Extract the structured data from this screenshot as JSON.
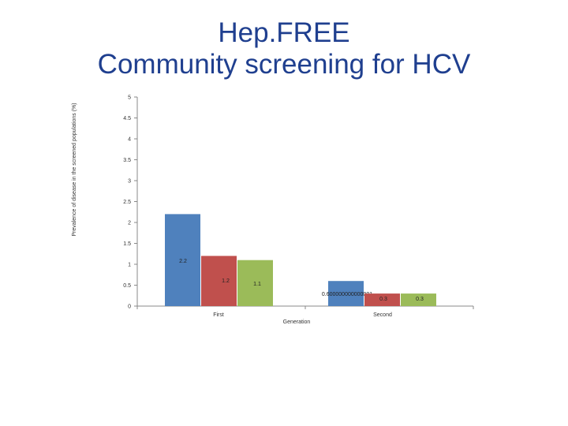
{
  "slide": {
    "title_line1": "Hep.FREE",
    "title_line2": "Community screening for HCV"
  },
  "chart_data": {
    "type": "bar",
    "categories": [
      "First",
      "Second"
    ],
    "series": [
      {
        "values": [
          2.2,
          0.6
        ],
        "labels": [
          "2.2",
          "0.600000000000001"
        ],
        "color": "#4f81bd"
      },
      {
        "values": [
          1.2,
          0.3
        ],
        "labels": [
          "1.2",
          "0.3"
        ],
        "color": "#c0504d"
      },
      {
        "values": [
          1.1,
          0.3
        ],
        "labels": [
          "1.1",
          "0.3"
        ],
        "color": "#9bbb59"
      }
    ],
    "xlabel": "Generation",
    "ylabel": "Prevalence of disease in the screened populations (%)",
    "ylim": [
      0,
      5
    ],
    "yticks": [
      "0",
      "0.5",
      "1",
      "1.5",
      "2",
      "2.5",
      "3",
      "3.5",
      "4",
      "4.5",
      "5"
    ],
    "grid": false,
    "legend": "none"
  }
}
